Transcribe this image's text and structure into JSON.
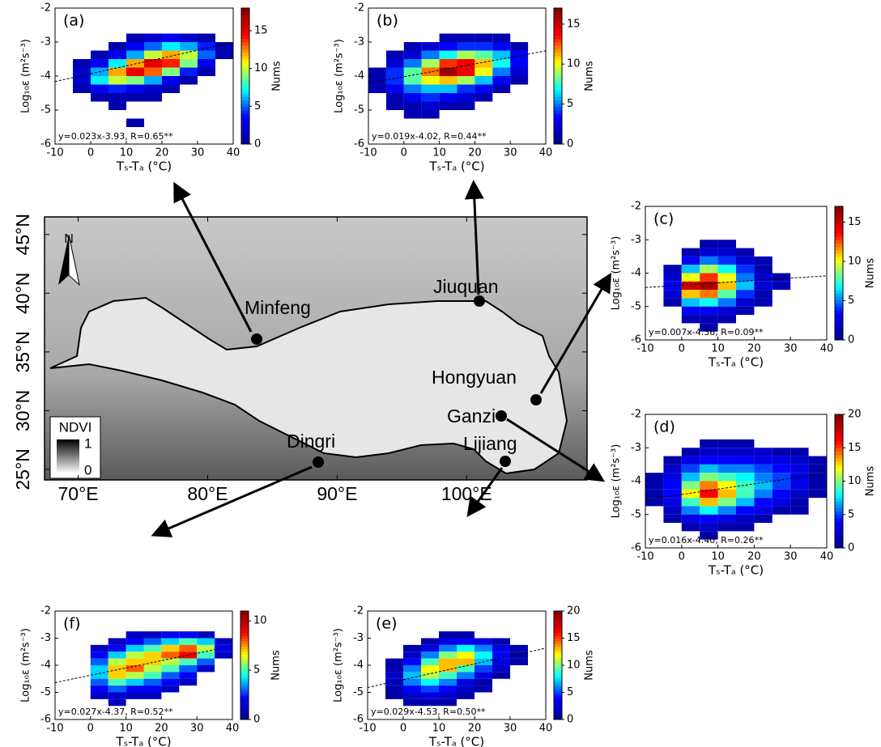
{
  "chart_data": [
    {
      "type": "histogram2d",
      "label": "(a)",
      "equation": "y=0.023x-3.93, R=0.65**",
      "fit": {
        "slope": 0.023,
        "intercept": -3.93
      },
      "xlabel": "Tₛ-Tₐ (°C)",
      "ylabel": "Log₁₀ε (m²s⁻³)",
      "colorbar_label": "Nums",
      "xlim": [
        -10,
        40
      ],
      "xticks": [
        -10,
        0,
        10,
        20,
        30,
        40
      ],
      "ylim": [
        -6,
        -2
      ],
      "yticks": [
        -6,
        -5,
        -4,
        -3,
        -2
      ],
      "clim": [
        0,
        18
      ],
      "cticks": [
        0,
        5,
        10,
        15
      ],
      "colormap": [
        "#00008f",
        "#0000ff",
        "#00ffff",
        "#ffff00",
        "#ff0000",
        "#800000"
      ],
      "xbins": [
        -10,
        -5,
        0,
        5,
        10,
        15,
        20,
        25,
        30,
        35,
        40
      ],
      "ybins": [
        -2.75,
        -3,
        -3.25,
        -3.5,
        -3.75,
        -4,
        -4.25,
        -4.5,
        -4.75,
        -5,
        -5.25,
        -5.5,
        -5.75
      ],
      "counts": [
        [
          0,
          0,
          0,
          0,
          1,
          2,
          3,
          2,
          1,
          0
        ],
        [
          0,
          0,
          0,
          1,
          3,
          5,
          7,
          6,
          4,
          1
        ],
        [
          0,
          0,
          1,
          3,
          6,
          10,
          12,
          10,
          5,
          1
        ],
        [
          0,
          1,
          3,
          7,
          12,
          15,
          14,
          9,
          3,
          0
        ],
        [
          0,
          2,
          6,
          12,
          15,
          13,
          9,
          4,
          1,
          0
        ],
        [
          0,
          2,
          7,
          10,
          9,
          6,
          3,
          1,
          0,
          0
        ],
        [
          0,
          1,
          3,
          4,
          3,
          2,
          1,
          0,
          0,
          0
        ],
        [
          0,
          0,
          1,
          1,
          1,
          1,
          0,
          0,
          0,
          0
        ],
        [
          0,
          0,
          0,
          1,
          0,
          0,
          0,
          0,
          0,
          0
        ],
        [
          0,
          0,
          0,
          0,
          0,
          0,
          0,
          0,
          0,
          0
        ],
        [
          0,
          0,
          0,
          0,
          1,
          0,
          0,
          0,
          0,
          0
        ],
        [
          0,
          0,
          0,
          0,
          0,
          0,
          0,
          0,
          0,
          0
        ]
      ]
    },
    {
      "type": "histogram2d",
      "label": "(b)",
      "equation": "y=0.019x-4.02, R=0.44**",
      "fit": {
        "slope": 0.019,
        "intercept": -4.02
      },
      "xlabel": "Tₛ-Tₐ (°C)",
      "ylabel": "Log₁₀ε (m²s⁻³)",
      "colorbar_label": "Nums",
      "xlim": [
        -10,
        40
      ],
      "xticks": [
        -10,
        0,
        10,
        20,
        30,
        40
      ],
      "ylim": [
        -6,
        -2
      ],
      "yticks": [
        -6,
        -5,
        -4,
        -3,
        -2
      ],
      "clim": [
        0,
        17
      ],
      "cticks": [
        0,
        5,
        10,
        15
      ],
      "colormap": [
        "#00008f",
        "#0000ff",
        "#00ffff",
        "#ffff00",
        "#ff0000",
        "#800000"
      ],
      "xbins": [
        -10,
        -5,
        0,
        5,
        10,
        15,
        20,
        25,
        30,
        35,
        40
      ],
      "ybins": [
        -2.75,
        -3,
        -3.25,
        -3.5,
        -3.75,
        -4,
        -4.25,
        -4.5,
        -4.75,
        -5,
        -5.25,
        -5.5,
        -5.75
      ],
      "counts": [
        [
          0,
          0,
          0,
          0,
          1,
          1,
          1,
          1,
          0,
          0
        ],
        [
          0,
          0,
          1,
          2,
          3,
          4,
          4,
          3,
          1,
          0
        ],
        [
          0,
          1,
          2,
          5,
          7,
          9,
          8,
          6,
          3,
          0
        ],
        [
          0,
          2,
          5,
          9,
          13,
          14,
          11,
          7,
          3,
          0
        ],
        [
          1,
          4,
          8,
          12,
          16,
          14,
          10,
          5,
          2,
          0
        ],
        [
          1,
          4,
          8,
          10,
          11,
          9,
          6,
          3,
          1,
          0
        ],
        [
          1,
          3,
          5,
          6,
          6,
          4,
          3,
          1,
          0,
          0
        ],
        [
          0,
          1,
          3,
          4,
          3,
          2,
          1,
          0,
          0,
          0
        ],
        [
          0,
          1,
          1,
          2,
          1,
          1,
          0,
          0,
          0,
          0
        ],
        [
          0,
          0,
          1,
          1,
          0,
          0,
          0,
          0,
          0,
          0
        ],
        [
          0,
          0,
          0,
          0,
          0,
          0,
          0,
          0,
          0,
          0
        ],
        [
          0,
          0,
          0,
          0,
          0,
          0,
          0,
          0,
          0,
          0
        ]
      ]
    },
    {
      "type": "histogram2d",
      "label": "(c)",
      "equation": "y=0.007x-4.36, R=0.09**",
      "fit": {
        "slope": 0.007,
        "intercept": -4.36
      },
      "xlabel": "Tₛ-Tₐ (°C)",
      "ylabel": "Log₁₀ε (m²s⁻³)",
      "colorbar_label": "Nums",
      "xlim": [
        -10,
        40
      ],
      "xticks": [
        -10,
        0,
        10,
        20,
        30,
        40
      ],
      "ylim": [
        -6,
        -2
      ],
      "yticks": [
        -6,
        -5,
        -4,
        -3,
        -2
      ],
      "clim": [
        0,
        17
      ],
      "cticks": [
        0,
        5,
        10,
        15
      ],
      "colormap": [
        "#00008f",
        "#0000ff",
        "#00ffff",
        "#ffff00",
        "#ff0000",
        "#800000"
      ],
      "xbins": [
        -10,
        -5,
        0,
        5,
        10,
        15,
        20,
        25,
        30,
        35,
        40
      ],
      "ybins": [
        -2.75,
        -3,
        -3.25,
        -3.5,
        -3.75,
        -4,
        -4.25,
        -4.5,
        -4.75,
        -5,
        -5.25,
        -5.5,
        -5.75
      ],
      "counts": [
        [
          0,
          0,
          0,
          0,
          0,
          0,
          0,
          0,
          0,
          0
        ],
        [
          0,
          0,
          0,
          1,
          1,
          0,
          0,
          0,
          0,
          0
        ],
        [
          0,
          0,
          1,
          2,
          2,
          1,
          0,
          0,
          0,
          0
        ],
        [
          0,
          0,
          3,
          5,
          4,
          2,
          1,
          0,
          0,
          0
        ],
        [
          0,
          1,
          6,
          9,
          7,
          4,
          1,
          0,
          0,
          0
        ],
        [
          0,
          2,
          10,
          13,
          10,
          5,
          2,
          1,
          0,
          0
        ],
        [
          0,
          3,
          15,
          16,
          11,
          6,
          2,
          1,
          0,
          0
        ],
        [
          0,
          2,
          11,
          12,
          8,
          4,
          1,
          0,
          0,
          0
        ],
        [
          0,
          1,
          6,
          7,
          5,
          2,
          1,
          0,
          0,
          0
        ],
        [
          0,
          0,
          3,
          3,
          2,
          1,
          0,
          0,
          0,
          0
        ],
        [
          0,
          0,
          1,
          1,
          1,
          0,
          0,
          0,
          0,
          0
        ],
        [
          0,
          0,
          0,
          1,
          0,
          0,
          0,
          0,
          0,
          0
        ]
      ]
    },
    {
      "type": "histogram2d",
      "label": "(d)",
      "equation": "y=0.016x-4.40, R=0.26**",
      "fit": {
        "slope": 0.016,
        "intercept": -4.4
      },
      "xlabel": "Tₛ-Tₐ (°C)",
      "ylabel": "Log₁₀ε (m²s⁻³)",
      "colorbar_label": "Nums",
      "xlim": [
        -10,
        40
      ],
      "xticks": [
        -10,
        0,
        10,
        20,
        30,
        40
      ],
      "ylim": [
        -6,
        -2
      ],
      "yticks": [
        -6,
        -5,
        -4,
        -3,
        -2
      ],
      "clim": [
        0,
        20
      ],
      "cticks": [
        0,
        5,
        10,
        15,
        20
      ],
      "colormap": [
        "#00008f",
        "#0000ff",
        "#00ffff",
        "#ffff00",
        "#ff0000",
        "#800000"
      ],
      "xbins": [
        -10,
        -5,
        0,
        5,
        10,
        15,
        20,
        25,
        30,
        35,
        40
      ],
      "ybins": [
        -2.75,
        -3,
        -3.25,
        -3.5,
        -3.75,
        -4,
        -4.25,
        -4.5,
        -4.75,
        -5,
        -5.25,
        -5.5,
        -5.75
      ],
      "counts": [
        [
          0,
          0,
          0,
          1,
          1,
          1,
          0,
          0,
          0,
          0
        ],
        [
          0,
          0,
          1,
          2,
          2,
          2,
          2,
          1,
          1,
          0
        ],
        [
          0,
          1,
          3,
          4,
          4,
          4,
          3,
          3,
          2,
          1
        ],
        [
          0,
          2,
          5,
          7,
          6,
          6,
          5,
          4,
          3,
          1
        ],
        [
          1,
          3,
          7,
          10,
          9,
          8,
          6,
          5,
          3,
          1
        ],
        [
          1,
          4,
          10,
          14,
          12,
          9,
          7,
          5,
          3,
          1
        ],
        [
          1,
          4,
          12,
          16,
          13,
          9,
          6,
          4,
          2,
          1
        ],
        [
          1,
          3,
          9,
          13,
          10,
          7,
          4,
          3,
          1,
          0
        ],
        [
          0,
          2,
          6,
          8,
          6,
          4,
          3,
          1,
          1,
          0
        ],
        [
          0,
          1,
          3,
          4,
          3,
          2,
          1,
          0,
          0,
          0
        ],
        [
          0,
          0,
          1,
          2,
          1,
          1,
          0,
          0,
          0,
          0
        ],
        [
          0,
          0,
          0,
          1,
          0,
          0,
          0,
          0,
          0,
          0
        ]
      ]
    },
    {
      "type": "histogram2d",
      "label": "(e)",
      "equation": "y=0.029x-4.53, R=0.50**",
      "fit": {
        "slope": 0.029,
        "intercept": -4.53
      },
      "xlabel": "Tₛ-Tₐ (°C)",
      "ylabel": "Log₁₀ε (m²s⁻³)",
      "colorbar_label": "Nums",
      "xlim": [
        -10,
        40
      ],
      "xticks": [
        -10,
        0,
        10,
        20,
        30,
        40
      ],
      "ylim": [
        -6,
        -2
      ],
      "yticks": [
        -6,
        -5,
        -4,
        -3,
        -2
      ],
      "clim": [
        0,
        20
      ],
      "cticks": [
        0,
        5,
        10,
        15,
        20
      ],
      "colormap": [
        "#00008f",
        "#0000ff",
        "#00ffff",
        "#ffff00",
        "#ff0000",
        "#800000"
      ],
      "xbins": [
        -10,
        -5,
        0,
        5,
        10,
        15,
        20,
        25,
        30,
        35,
        40
      ],
      "ybins": [
        -2.75,
        -3,
        -3.25,
        -3.5,
        -3.75,
        -4,
        -4.25,
        -4.5,
        -4.75,
        -5,
        -5.25,
        -5.5,
        -5.75
      ],
      "counts": [
        [
          0,
          0,
          0,
          0,
          1,
          1,
          0,
          0,
          0,
          0
        ],
        [
          0,
          0,
          0,
          1,
          3,
          4,
          3,
          1,
          0,
          0
        ],
        [
          0,
          0,
          1,
          3,
          6,
          8,
          6,
          3,
          1,
          0
        ],
        [
          0,
          0,
          2,
          6,
          10,
          12,
          8,
          4,
          1,
          0
        ],
        [
          0,
          1,
          4,
          9,
          13,
          13,
          7,
          3,
          1,
          0
        ],
        [
          0,
          1,
          6,
          12,
          13,
          9,
          5,
          2,
          0,
          0
        ],
        [
          0,
          2,
          7,
          11,
          9,
          6,
          3,
          1,
          0,
          0
        ],
        [
          0,
          2,
          6,
          8,
          6,
          3,
          1,
          0,
          0,
          0
        ],
        [
          0,
          1,
          4,
          5,
          4,
          2,
          1,
          0,
          0,
          0
        ],
        [
          0,
          1,
          2,
          3,
          2,
          1,
          0,
          0,
          0,
          0
        ],
        [
          0,
          0,
          1,
          1,
          1,
          0,
          0,
          0,
          0,
          0
        ],
        [
          0,
          0,
          0,
          0,
          0,
          0,
          0,
          0,
          0,
          0
        ]
      ]
    },
    {
      "type": "histogram2d",
      "label": "(f)",
      "equation": "y=0.027x-4.37, R=0.52**",
      "fit": {
        "slope": 0.027,
        "intercept": -4.37
      },
      "xlabel": "Tₛ-Tₐ (°C)",
      "ylabel": "Log₁₀ε (m²s⁻³)",
      "colorbar_label": "Nums",
      "xlim": [
        -10,
        40
      ],
      "xticks": [
        -10,
        0,
        10,
        20,
        30,
        40
      ],
      "ylim": [
        -6,
        -2
      ],
      "yticks": [
        -6,
        -5,
        -4,
        -3,
        -2
      ],
      "clim": [
        0,
        11
      ],
      "cticks": [
        0,
        5,
        10
      ],
      "colormap": [
        "#00008f",
        "#0000ff",
        "#00ffff",
        "#ffff00",
        "#ff0000",
        "#800000"
      ],
      "xbins": [
        -10,
        -5,
        0,
        5,
        10,
        15,
        20,
        25,
        30,
        35,
        40
      ],
      "ybins": [
        -2.75,
        -3,
        -3.25,
        -3.5,
        -3.75,
        -4,
        -4.25,
        -4.5,
        -4.75,
        -5,
        -5.25,
        -5.5,
        -5.75
      ],
      "counts": [
        [
          0,
          0,
          0,
          0,
          1,
          1,
          2,
          2,
          1,
          0
        ],
        [
          0,
          0,
          0,
          1,
          2,
          3,
          4,
          5,
          4,
          1
        ],
        [
          0,
          0,
          1,
          2,
          4,
          5,
          7,
          8,
          6,
          2
        ],
        [
          0,
          0,
          2,
          4,
          6,
          7,
          8,
          9,
          5,
          1
        ],
        [
          0,
          0,
          3,
          6,
          7,
          7,
          6,
          5,
          3,
          0
        ],
        [
          0,
          0,
          4,
          7,
          8,
          6,
          5,
          3,
          1,
          0
        ],
        [
          0,
          0,
          4,
          7,
          6,
          5,
          3,
          2,
          0,
          0
        ],
        [
          0,
          0,
          3,
          5,
          4,
          3,
          2,
          1,
          0,
          0
        ],
        [
          0,
          0,
          2,
          3,
          2,
          2,
          1,
          0,
          0,
          0
        ],
        [
          0,
          0,
          1,
          1,
          1,
          1,
          0,
          0,
          0,
          0
        ],
        [
          0,
          0,
          0,
          1,
          0,
          0,
          0,
          0,
          0,
          0
        ],
        [
          0,
          0,
          0,
          0,
          0,
          0,
          0,
          0,
          0,
          0
        ]
      ]
    }
  ],
  "map": {
    "lonlim": [
      67.4,
      109.3
    ],
    "latlim": [
      24.1,
      46.5
    ],
    "lonticks": [
      {
        "value": 70,
        "label": "70°E"
      },
      {
        "value": 80,
        "label": "80°E"
      },
      {
        "value": 90,
        "label": "90°E"
      },
      {
        "value": 100,
        "label": "100°E"
      }
    ],
    "latticks": [
      {
        "value": 25,
        "label": "25°N"
      },
      {
        "value": 30,
        "label": "30°N"
      },
      {
        "value": 35,
        "label": "35°N"
      },
      {
        "value": 40,
        "label": "40°N"
      },
      {
        "value": 45,
        "label": "45°N"
      }
    ],
    "north": "N",
    "legend": {
      "title": "NDVI",
      "max": "1",
      "min": "0"
    },
    "stations": [
      "Minfeng",
      "Jiuquan",
      "Hongyuan",
      "Ganzi",
      "Lijiang",
      "Dingri"
    ]
  }
}
